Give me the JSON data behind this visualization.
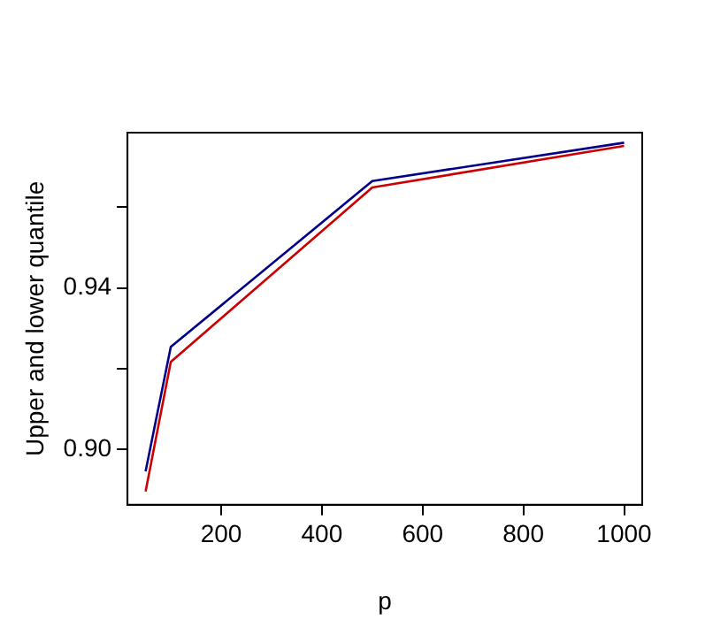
{
  "chart_data": {
    "type": "line",
    "xlabel": "p",
    "ylabel": "Upper and lower quantile",
    "x": [
      50,
      100,
      500,
      1000
    ],
    "series": [
      {
        "color": "#00008b",
        "values": [
          0.8946,
          0.9254,
          0.9665,
          0.976
        ]
      },
      {
        "color": "#cc0000",
        "values": [
          0.8896,
          0.9217,
          0.9649,
          0.9752
        ]
      }
    ],
    "xlim": [
      14,
      1036
    ],
    "xticks": [
      200,
      400,
      600,
      800,
      1000
    ],
    "ylim": [
      0.8863,
      0.9785
    ],
    "yticks": [
      {
        "value": 0.9,
        "label": "0.90"
      },
      {
        "value": 0.92,
        "label": null
      },
      0.94,
      {
        "value": 0.96,
        "label": null
      }
    ],
    "grid": false,
    "legend": false,
    "marker": "none",
    "line_style": "solid"
  }
}
